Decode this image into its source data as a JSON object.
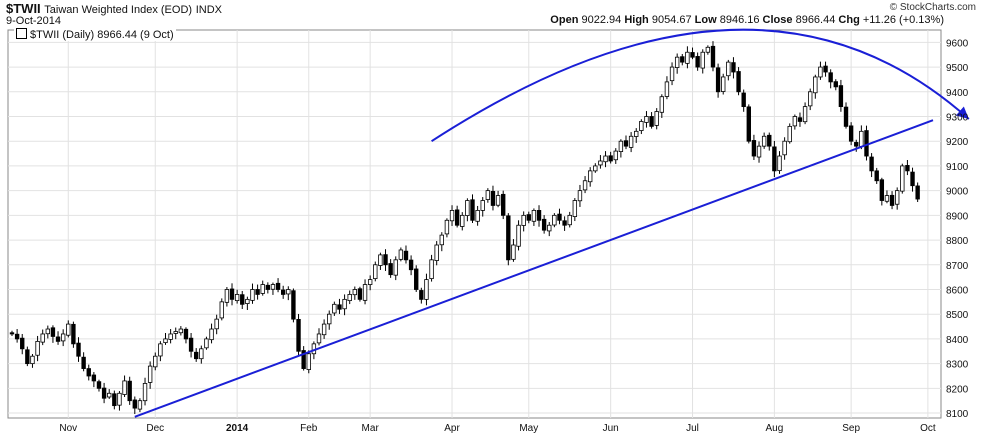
{
  "header": {
    "symbol": "$TWII",
    "name": "Taiwan Weighted Index (EOD)",
    "exchange": "INDX",
    "date": "9-Oct-2014",
    "credit": "© StockCharts.com",
    "open_label": "Open",
    "open": "9022.94",
    "high_label": "High",
    "high": "9054.67",
    "low_label": "Low",
    "low": "8946.16",
    "close_label": "Close",
    "close": "8966.44",
    "chg_label": "Chg",
    "chg": "+11.26 (+0.13%)"
  },
  "legend": {
    "label": "$TWII (Daily) 8966.44 (9 Oct)"
  },
  "chart_data": {
    "type": "candlestick",
    "title": "$TWII Taiwan Weighted Index (EOD) INDX",
    "ylim": [
      8080,
      9650
    ],
    "y_ticks": [
      8100,
      8200,
      8300,
      8400,
      8500,
      8600,
      8700,
      8800,
      8900,
      9000,
      9100,
      9200,
      9300,
      9400,
      9500,
      9600
    ],
    "x_labels": [
      "Nov",
      "Dec",
      "2014",
      "Feb",
      "Mar",
      "Apr",
      "May",
      "Jun",
      "Jul",
      "Aug",
      "Sep",
      "Oct"
    ],
    "grid": true,
    "close_series": [
      {
        "t": 0,
        "c": 8420
      },
      {
        "t": 1,
        "c": 8400
      },
      {
        "t": 2,
        "c": 8360
      },
      {
        "t": 3,
        "c": 8300
      },
      {
        "t": 4,
        "c": 8330
      },
      {
        "t": 5,
        "c": 8390
      },
      {
        "t": 6,
        "c": 8420
      },
      {
        "t": 7,
        "c": 8440
      },
      {
        "t": 8,
        "c": 8410
      },
      {
        "t": 9,
        "c": 8390
      },
      {
        "t": 10,
        "c": 8420
      },
      {
        "t": 11,
        "c": 8460
      },
      {
        "t": 12,
        "c": 8380
      },
      {
        "t": 13,
        "c": 8330
      },
      {
        "t": 14,
        "c": 8280
      },
      {
        "t": 15,
        "c": 8250
      },
      {
        "t": 16,
        "c": 8230
      },
      {
        "t": 17,
        "c": 8200
      },
      {
        "t": 18,
        "c": 8160
      },
      {
        "t": 19,
        "c": 8180
      },
      {
        "t": 20,
        "c": 8130
      },
      {
        "t": 21,
        "c": 8180
      },
      {
        "t": 22,
        "c": 8230
      },
      {
        "t": 23,
        "c": 8150
      },
      {
        "t": 24,
        "c": 8120
      },
      {
        "t": 25,
        "c": 8150
      },
      {
        "t": 26,
        "c": 8220
      },
      {
        "t": 27,
        "c": 8290
      },
      {
        "t": 28,
        "c": 8330
      },
      {
        "t": 29,
        "c": 8380
      },
      {
        "t": 30,
        "c": 8400
      },
      {
        "t": 31,
        "c": 8420
      },
      {
        "t": 32,
        "c": 8430
      },
      {
        "t": 33,
        "c": 8440
      },
      {
        "t": 34,
        "c": 8400
      },
      {
        "t": 35,
        "c": 8350
      },
      {
        "t": 36,
        "c": 8320
      },
      {
        "t": 37,
        "c": 8360
      },
      {
        "t": 38,
        "c": 8400
      },
      {
        "t": 39,
        "c": 8440
      },
      {
        "t": 40,
        "c": 8480
      },
      {
        "t": 41,
        "c": 8550
      },
      {
        "t": 42,
        "c": 8600
      },
      {
        "t": 43,
        "c": 8560
      },
      {
        "t": 44,
        "c": 8580
      },
      {
        "t": 45,
        "c": 8540
      },
      {
        "t": 46,
        "c": 8560
      },
      {
        "t": 47,
        "c": 8600
      },
      {
        "t": 48,
        "c": 8580
      },
      {
        "t": 49,
        "c": 8620
      },
      {
        "t": 50,
        "c": 8600
      },
      {
        "t": 51,
        "c": 8620
      },
      {
        "t": 52,
        "c": 8600
      },
      {
        "t": 53,
        "c": 8580
      },
      {
        "t": 54,
        "c": 8600
      },
      {
        "t": 55,
        "c": 8480
      },
      {
        "t": 56,
        "c": 8350
      },
      {
        "t": 57,
        "c": 8280
      },
      {
        "t": 58,
        "c": 8340
      },
      {
        "t": 59,
        "c": 8380
      },
      {
        "t": 60,
        "c": 8420
      },
      {
        "t": 61,
        "c": 8460
      },
      {
        "t": 62,
        "c": 8500
      },
      {
        "t": 63,
        "c": 8540
      },
      {
        "t": 64,
        "c": 8520
      },
      {
        "t": 65,
        "c": 8560
      },
      {
        "t": 66,
        "c": 8580
      },
      {
        "t": 67,
        "c": 8600
      },
      {
        "t": 68,
        "c": 8560
      },
      {
        "t": 69,
        "c": 8620
      },
      {
        "t": 70,
        "c": 8640
      },
      {
        "t": 71,
        "c": 8700
      },
      {
        "t": 72,
        "c": 8740
      },
      {
        "t": 73,
        "c": 8700
      },
      {
        "t": 74,
        "c": 8660
      },
      {
        "t": 75,
        "c": 8720
      },
      {
        "t": 76,
        "c": 8760
      },
      {
        "t": 77,
        "c": 8720
      },
      {
        "t": 78,
        "c": 8680
      },
      {
        "t": 79,
        "c": 8600
      },
      {
        "t": 80,
        "c": 8560
      },
      {
        "t": 81,
        "c": 8640
      },
      {
        "t": 82,
        "c": 8720
      },
      {
        "t": 83,
        "c": 8780
      },
      {
        "t": 84,
        "c": 8820
      },
      {
        "t": 85,
        "c": 8880
      },
      {
        "t": 86,
        "c": 8920
      },
      {
        "t": 87,
        "c": 8860
      },
      {
        "t": 88,
        "c": 8900
      },
      {
        "t": 89,
        "c": 8960
      },
      {
        "t": 90,
        "c": 8880
      },
      {
        "t": 91,
        "c": 8920
      },
      {
        "t": 92,
        "c": 8960
      },
      {
        "t": 93,
        "c": 9000
      },
      {
        "t": 94,
        "c": 8940
      },
      {
        "t": 95,
        "c": 8980
      },
      {
        "t": 96,
        "c": 8900
      },
      {
        "t": 97,
        "c": 8720
      },
      {
        "t": 98,
        "c": 8780
      },
      {
        "t": 99,
        "c": 8860
      },
      {
        "t": 100,
        "c": 8900
      },
      {
        "t": 101,
        "c": 8880
      },
      {
        "t": 102,
        "c": 8920
      },
      {
        "t": 103,
        "c": 8880
      },
      {
        "t": 104,
        "c": 8840
      },
      {
        "t": 105,
        "c": 8860
      },
      {
        "t": 106,
        "c": 8900
      },
      {
        "t": 107,
        "c": 8880
      },
      {
        "t": 108,
        "c": 8860
      },
      {
        "t": 109,
        "c": 8900
      },
      {
        "t": 110,
        "c": 8960
      },
      {
        "t": 111,
        "c": 9000
      },
      {
        "t": 112,
        "c": 9040
      },
      {
        "t": 113,
        "c": 9080
      },
      {
        "t": 114,
        "c": 9100
      },
      {
        "t": 115,
        "c": 9120
      },
      {
        "t": 116,
        "c": 9140
      },
      {
        "t": 117,
        "c": 9120
      },
      {
        "t": 118,
        "c": 9160
      },
      {
        "t": 119,
        "c": 9200
      },
      {
        "t": 120,
        "c": 9180
      },
      {
        "t": 121,
        "c": 9220
      },
      {
        "t": 122,
        "c": 9240
      },
      {
        "t": 123,
        "c": 9280
      },
      {
        "t": 124,
        "c": 9300
      },
      {
        "t": 125,
        "c": 9260
      },
      {
        "t": 126,
        "c": 9320
      },
      {
        "t": 127,
        "c": 9380
      },
      {
        "t": 128,
        "c": 9440
      },
      {
        "t": 129,
        "c": 9500
      },
      {
        "t": 130,
        "c": 9540
      },
      {
        "t": 131,
        "c": 9520
      },
      {
        "t": 132,
        "c": 9560
      },
      {
        "t": 133,
        "c": 9540
      },
      {
        "t": 134,
        "c": 9500
      },
      {
        "t": 135,
        "c": 9560
      },
      {
        "t": 136,
        "c": 9580
      },
      {
        "t": 137,
        "c": 9500
      },
      {
        "t": 138,
        "c": 9400
      },
      {
        "t": 139,
        "c": 9460
      },
      {
        "t": 140,
        "c": 9520
      },
      {
        "t": 141,
        "c": 9480
      },
      {
        "t": 142,
        "c": 9400
      },
      {
        "t": 143,
        "c": 9340
      },
      {
        "t": 144,
        "c": 9200
      },
      {
        "t": 145,
        "c": 9140
      },
      {
        "t": 146,
        "c": 9180
      },
      {
        "t": 147,
        "c": 9220
      },
      {
        "t": 148,
        "c": 9180
      },
      {
        "t": 149,
        "c": 9080
      },
      {
        "t": 150,
        "c": 9140
      },
      {
        "t": 151,
        "c": 9200
      },
      {
        "t": 152,
        "c": 9260
      },
      {
        "t": 153,
        "c": 9300
      },
      {
        "t": 154,
        "c": 9280
      },
      {
        "t": 155,
        "c": 9340
      },
      {
        "t": 156,
        "c": 9400
      },
      {
        "t": 157,
        "c": 9460
      },
      {
        "t": 158,
        "c": 9500
      },
      {
        "t": 159,
        "c": 9480
      },
      {
        "t": 160,
        "c": 9440
      },
      {
        "t": 161,
        "c": 9420
      },
      {
        "t": 162,
        "c": 9340
      },
      {
        "t": 163,
        "c": 9260
      },
      {
        "t": 164,
        "c": 9200
      },
      {
        "t": 165,
        "c": 9180
      },
      {
        "t": 166,
        "c": 9240
      },
      {
        "t": 167,
        "c": 9140
      },
      {
        "t": 168,
        "c": 9080
      },
      {
        "t": 169,
        "c": 9040
      },
      {
        "t": 170,
        "c": 8960
      },
      {
        "t": 171,
        "c": 8980
      },
      {
        "t": 172,
        "c": 8940
      },
      {
        "t": 173,
        "c": 9000
      },
      {
        "t": 174,
        "c": 9100
      },
      {
        "t": 175,
        "c": 9080
      },
      {
        "t": 176,
        "c": 9020
      },
      {
        "t": 177,
        "c": 8966
      }
    ],
    "annotations": [
      {
        "type": "trendline",
        "from": {
          "t": 24,
          "v": 8085
        },
        "to": {
          "t": 180,
          "v": 9285
        },
        "color": "#1a1fd6"
      },
      {
        "type": "arc",
        "points": [
          {
            "t": 82,
            "v": 9200
          },
          {
            "t": 140,
            "v": 9650
          },
          {
            "t": 187,
            "v": 9290
          }
        ],
        "color": "#1a1fd6",
        "arrow": true
      }
    ],
    "months": [
      {
        "label": "Nov",
        "t": 11
      },
      {
        "label": "Dec",
        "t": 28
      },
      {
        "label": "2014",
        "t": 44
      },
      {
        "label": "Feb",
        "t": 58
      },
      {
        "label": "Mar",
        "t": 70
      },
      {
        "label": "Apr",
        "t": 86
      },
      {
        "label": "May",
        "t": 101
      },
      {
        "label": "Jun",
        "t": 117
      },
      {
        "label": "Jul",
        "t": 133
      },
      {
        "label": "Aug",
        "t": 149
      },
      {
        "label": "Sep",
        "t": 164
      },
      {
        "label": "Oct",
        "t": 179
      }
    ]
  }
}
